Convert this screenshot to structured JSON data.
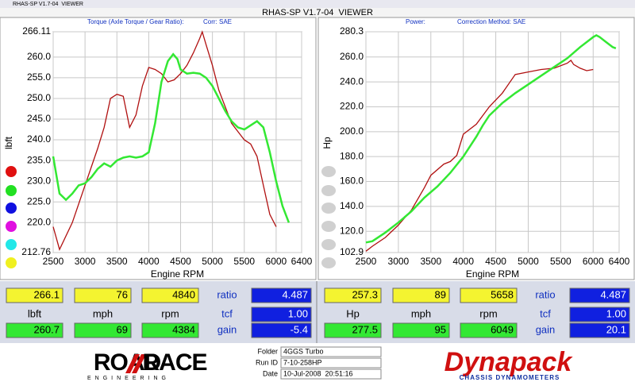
{
  "window": {
    "title": "RHAS-SP V1.7-04  VIEWER",
    "header": "RHAS-SP V1.7-04  VIEWER"
  },
  "chart_data": [
    {
      "type": "line",
      "title": "Torque (Axle Torque / Gear Ratio):",
      "subtitle": "Corr: SAE",
      "x_label": "Engine RPM",
      "y_label": "lbft",
      "grid": true,
      "xlim": [
        2500,
        6400
      ],
      "xticks": [
        2500,
        3000,
        3500,
        4000,
        4500,
        5000,
        5500,
        6000,
        6400
      ],
      "ylim": [
        212.76,
        266.11
      ],
      "yticks": [
        212.76,
        {
          "value": 220,
          "label": "220.0"
        },
        {
          "value": 225,
          "label": "225.0"
        },
        {
          "value": 230,
          "label": "230.0"
        },
        {
          "value": 235,
          "label": "235.0"
        },
        {
          "value": 240,
          "label": "240.0"
        },
        {
          "value": 245,
          "label": "245.0"
        },
        {
          "value": 250,
          "label": "250.0"
        },
        {
          "value": 255,
          "label": "255.0"
        },
        {
          "value": 260,
          "label": "260.0"
        },
        266.11
      ],
      "series": [
        {
          "color": "#b01010",
          "x": [
            2500,
            2600,
            2800,
            3000,
            3200,
            3300,
            3400,
            3500,
            3600,
            3700,
            3800,
            3900,
            4000,
            4100,
            4200,
            4300,
            4400,
            4500,
            4600,
            4700,
            4800,
            4840,
            4900,
            5000,
            5100,
            5200,
            5300,
            5400,
            5500,
            5600,
            5700,
            5800,
            5900,
            6000
          ],
          "values": [
            219,
            213.5,
            220,
            229,
            238,
            243,
            250,
            251,
            250.5,
            243,
            246,
            253,
            257.5,
            257,
            256,
            254,
            254.5,
            256,
            258,
            261,
            264.5,
            266.1,
            263,
            258,
            252,
            248,
            244,
            242,
            240,
            239,
            236,
            229,
            222,
            219
          ]
        },
        {
          "color": "#33e833",
          "x": [
            2500,
            2600,
            2700,
            2800,
            2900,
            3000,
            3100,
            3200,
            3300,
            3400,
            3500,
            3600,
            3700,
            3800,
            3900,
            4000,
            4100,
            4200,
            4300,
            4384,
            4450,
            4500,
            4600,
            4700,
            4800,
            4900,
            5000,
            5100,
            5200,
            5300,
            5400,
            5500,
            5600,
            5700,
            5800,
            5900,
            6000,
            6100,
            6200
          ],
          "values": [
            236,
            227,
            225.5,
            227,
            229,
            229.5,
            231,
            233,
            234.3,
            233.5,
            235,
            235.7,
            236,
            235.7,
            236,
            237,
            244,
            254,
            259,
            260.7,
            259.5,
            257,
            256,
            256.2,
            256,
            255,
            253,
            250,
            247,
            244.5,
            243,
            242.5,
            243.5,
            244.5,
            243,
            237,
            230,
            224,
            220
          ]
        }
      ]
    },
    {
      "type": "line",
      "title": "Power:",
      "subtitle": "Correction Method: SAE",
      "x_label": "Engine RPM",
      "y_label": "Hp",
      "grid": true,
      "xlim": [
        2500,
        6400
      ],
      "xticks": [
        2500,
        3000,
        3500,
        4000,
        4500,
        5000,
        5500,
        6000,
        6400
      ],
      "ylim": [
        102.9,
        280.3
      ],
      "yticks": [
        102.9,
        {
          "value": 120,
          "label": "120.0"
        },
        {
          "value": 140,
          "label": "140.0"
        },
        {
          "value": 160,
          "label": "160.0"
        },
        {
          "value": 180,
          "label": "180.0"
        },
        {
          "value": 200,
          "label": "200.0"
        },
        {
          "value": 220,
          "label": "220.0"
        },
        {
          "value": 240,
          "label": "240.0"
        },
        {
          "value": 260,
          "label": "260.0"
        },
        280.3
      ],
      "series": [
        {
          "color": "#b01010",
          "x": [
            2500,
            2600,
            2800,
            3000,
            3200,
            3400,
            3500,
            3700,
            3800,
            3900,
            4000,
            4200,
            4400,
            4600,
            4800,
            5000,
            5200,
            5400,
            5600,
            5658,
            5700,
            5800,
            5900,
            6000
          ],
          "values": [
            104,
            108,
            115,
            125,
            137,
            155,
            165,
            174,
            176,
            181,
            198,
            206,
            220,
            231,
            246,
            248,
            250,
            251,
            255,
            257.3,
            254,
            251,
            249,
            250
          ]
        },
        {
          "color": "#33e833",
          "x": [
            2500,
            2600,
            2800,
            3000,
            3200,
            3400,
            3600,
            3800,
            4000,
            4200,
            4300,
            4400,
            4600,
            4800,
            5000,
            5200,
            5400,
            5600,
            5800,
            6000,
            6049,
            6100,
            6200,
            6300,
            6350
          ],
          "values": [
            111,
            112,
            119,
            127,
            136,
            147,
            156,
            167,
            180,
            196,
            205,
            213,
            223,
            231,
            238,
            245,
            252,
            259,
            268,
            276,
            277.5,
            276,
            272,
            268,
            267
          ]
        }
      ]
    }
  ],
  "readouts": [
    {
      "rows": [
        [
          "266.1",
          "76",
          "4840",
          "ratio",
          "4.487"
        ],
        [
          "lbft",
          "mph",
          "rpm",
          "tcf",
          "1.00"
        ],
        [
          "260.7",
          "69",
          "4384",
          "gain",
          "-5.4"
        ]
      ]
    },
    {
      "rows": [
        [
          "257.3",
          "89",
          "5658",
          "ratio",
          "4.487"
        ],
        [
          "Hp",
          "mph",
          "rpm",
          "tcf",
          "1.00"
        ],
        [
          "277.5",
          "95",
          "6049",
          "gain",
          "20.1"
        ]
      ]
    }
  ],
  "info": {
    "labels": [
      "Folder",
      "Run ID",
      "Date"
    ],
    "values": [
      "4GGS Turbo",
      "7-10-258HP",
      "10-Jul-2008  20:51:16"
    ]
  },
  "logos": {
    "left_a": "ROAD",
    "left_b": "RACE",
    "left_sub": "ENGINEERING",
    "right": "Dynapack",
    "right_sub": "CHASSIS DYNAMOMETERS"
  }
}
